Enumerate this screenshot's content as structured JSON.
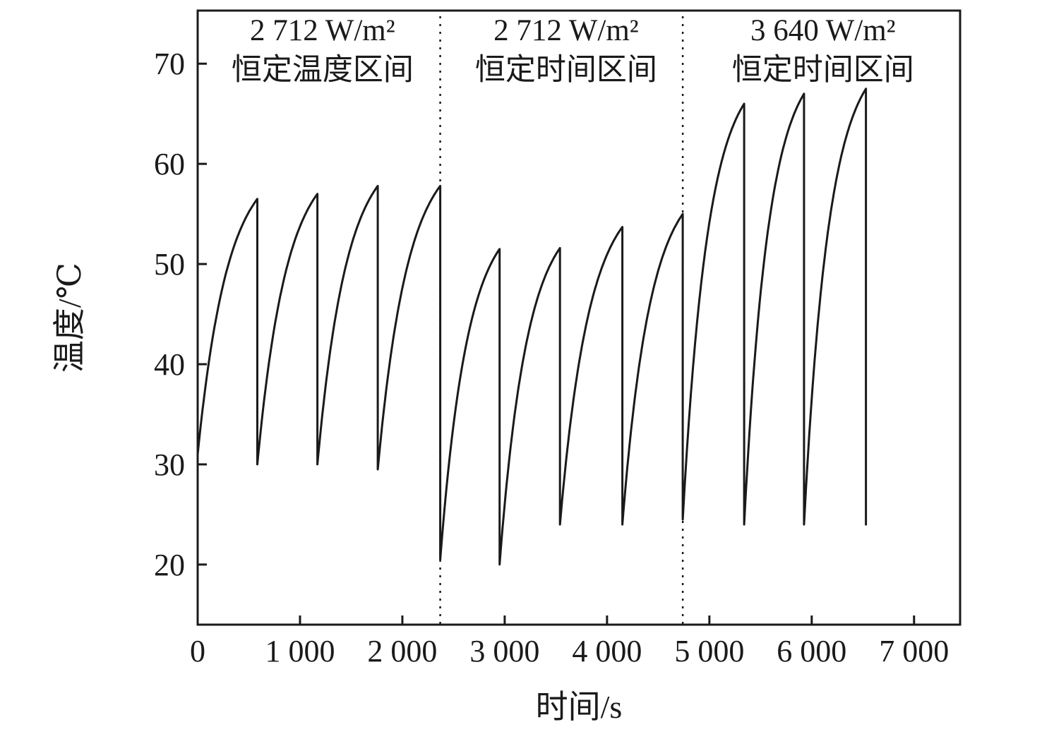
{
  "figure": {
    "xlabel": "时间/s",
    "ylabel": "温度/℃"
  },
  "chart_data": {
    "type": "line",
    "title": "",
    "xlabel": "时间/s",
    "ylabel": "温度/℃",
    "xlim": [
      0,
      7450
    ],
    "ylim": [
      14,
      75.3
    ],
    "x_ticks": [
      0,
      1000,
      2000,
      3000,
      4000,
      5000,
      6000,
      7000
    ],
    "x_tick_labels": [
      "0",
      "1 000",
      "2 000",
      "3 000",
      "4 000",
      "5 000",
      "6 000",
      "7 000"
    ],
    "y_ticks": [
      20,
      30,
      40,
      50,
      60,
      70
    ],
    "grid": false,
    "legend": null,
    "line_color": "#1a1a1a",
    "divider_x": [
      2370,
      4740
    ],
    "regions": [
      {
        "label_line1": "2 712 W/m²",
        "label_line2": "恒定温度区间",
        "x_center": 1220
      },
      {
        "label_line1": "2 712 W/m²",
        "label_line2": "恒定时间区间",
        "x_center": 3600
      },
      {
        "label_line1": "3 640 W/m²",
        "label_line2": "恒定时间区间",
        "x_center": 6110
      }
    ],
    "cycles": [
      {
        "t_start": 0,
        "T_start": 31,
        "t_peak": 583,
        "T_peak": 56.5,
        "T_drop": 30
      },
      {
        "t_start": 583,
        "T_start": 30,
        "t_peak": 1170,
        "T_peak": 57.0,
        "T_drop": 30
      },
      {
        "t_start": 1170,
        "T_start": 30,
        "t_peak": 1760,
        "T_peak": 57.8,
        "T_drop": 29.5
      },
      {
        "t_start": 1760,
        "T_start": 29.5,
        "t_peak": 2370,
        "T_peak": 57.8,
        "T_drop": 20.5
      },
      {
        "t_start": 2370,
        "T_start": 20.5,
        "t_peak": 2950,
        "T_peak": 51.5,
        "T_drop": 20
      },
      {
        "t_start": 2950,
        "T_start": 20,
        "t_peak": 3540,
        "T_peak": 51.6,
        "T_drop": 24
      },
      {
        "t_start": 3540,
        "T_start": 24,
        "t_peak": 4150,
        "T_peak": 53.7,
        "T_drop": 24
      },
      {
        "t_start": 4150,
        "T_start": 24,
        "t_peak": 4740,
        "T_peak": 55.0,
        "T_drop": 24.5
      },
      {
        "t_start": 4740,
        "T_start": 24.5,
        "t_peak": 5340,
        "T_peak": 66.0,
        "T_drop": 24
      },
      {
        "t_start": 5340,
        "T_start": 24,
        "t_peak": 5925,
        "T_peak": 67.0,
        "T_drop": 24
      },
      {
        "t_start": 5925,
        "T_start": 24,
        "t_peak": 6530,
        "T_peak": 67.5,
        "T_drop": 24
      }
    ]
  }
}
